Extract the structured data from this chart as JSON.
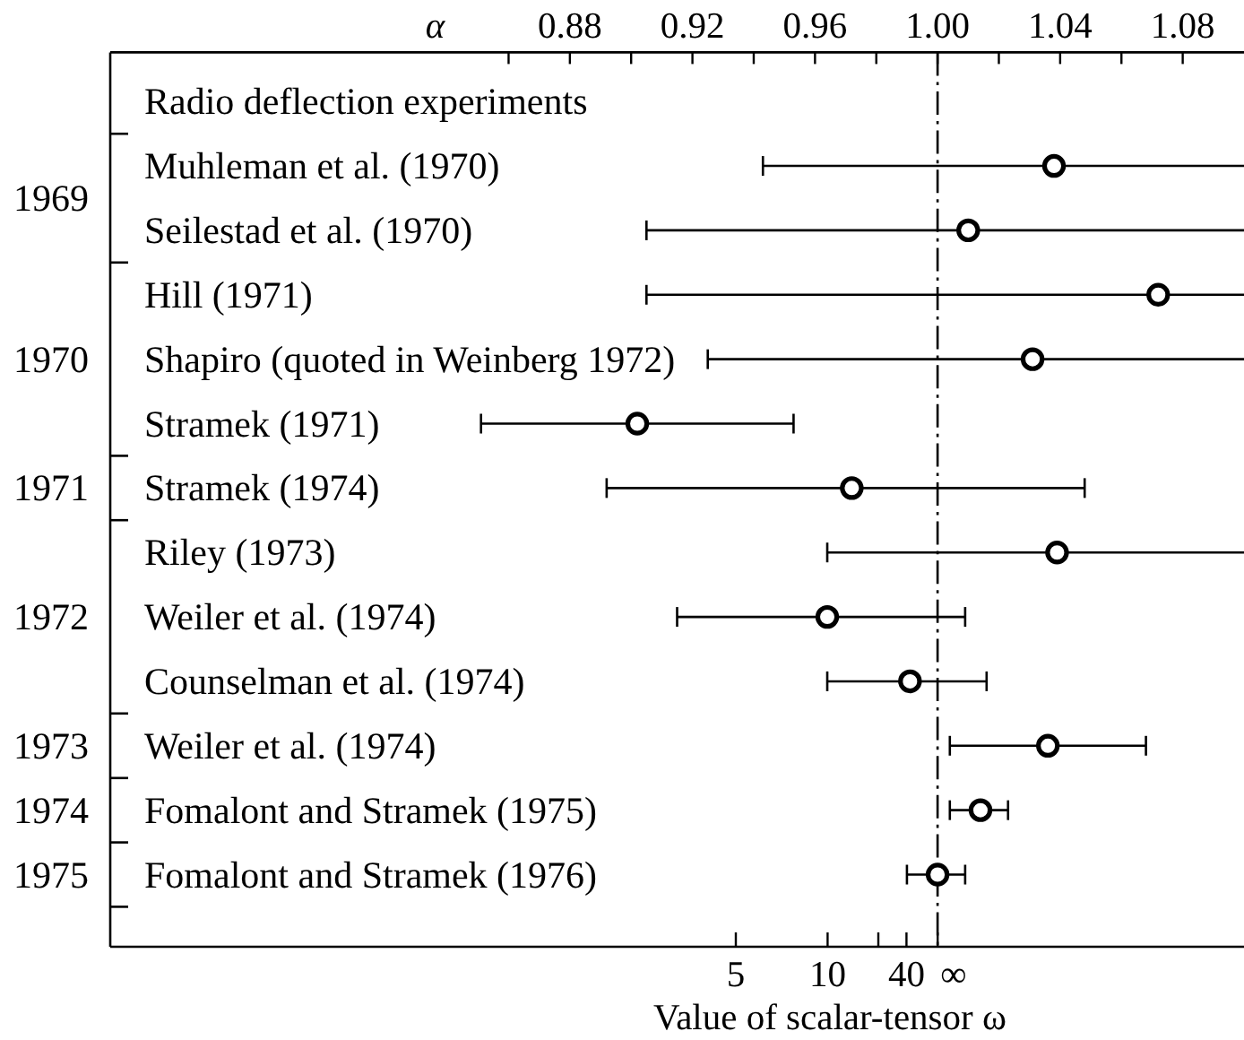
{
  "chart_data": {
    "type": "scatter",
    "orientation": "horizontal",
    "xlabel": "α",
    "categories": [
      "Radio deflection experiments",
      "Muhleman et al. (1970)",
      "Seilestad et al. (1970)",
      "Hill (1971)",
      "Shapiro (quoted in Weinberg 1972)",
      "Stramek (1971)",
      "Stramek (1974)",
      "Riley (1973)",
      "Weiler et al. (1974)",
      "Counselman et al. (1974)",
      "Weiler et al. (1974)",
      "Fomalont and Stramek (1975)",
      "Fomalont and Stramek (1976)"
    ],
    "values": [
      null,
      1.038,
      1.01,
      1.072,
      1.031,
      0.902,
      0.972,
      1.039,
      0.964,
      0.991,
      1.036,
      1.014,
      1.0
    ],
    "errors": [
      null,
      [
        0.943,
        1.1
      ],
      [
        0.905,
        1.1
      ],
      [
        0.905,
        1.1
      ],
      [
        0.925,
        1.1
      ],
      [
        0.851,
        0.953
      ],
      [
        0.892,
        1.048
      ],
      [
        0.964,
        1.1
      ],
      [
        0.915,
        1.009
      ],
      [
        0.964,
        1.016
      ],
      [
        1.004,
        1.068
      ],
      [
        1.004,
        1.023
      ],
      [
        0.99,
        1.009
      ]
    ],
    "color": "#000000",
    "marker": "circle",
    "xlim": [
      0.73,
      1.1
    ],
    "xticks": [
      {
        "value": 0.86,
        "label": null
      },
      0.88,
      {
        "value": 0.9,
        "label": null
      },
      0.92,
      {
        "value": 0.94,
        "label": null
      },
      0.96,
      {
        "value": 0.98,
        "label": null
      },
      {
        "value": 1.0,
        "label": "1.00"
      },
      {
        "value": 1.02,
        "label": null
      },
      1.04,
      {
        "value": 1.06,
        "label": null
      },
      1.08
    ],
    "ref_lines": [
      {
        "axis": "x",
        "value": 1.0,
        "line_style": "dashed"
      }
    ],
    "annotations": [
      "5",
      "10",
      "40",
      "∞",
      "Value of scalar-tensor ω",
      "1969",
      "1970",
      "1971",
      "1972",
      "1973",
      "1974",
      "1975"
    ]
  }
}
